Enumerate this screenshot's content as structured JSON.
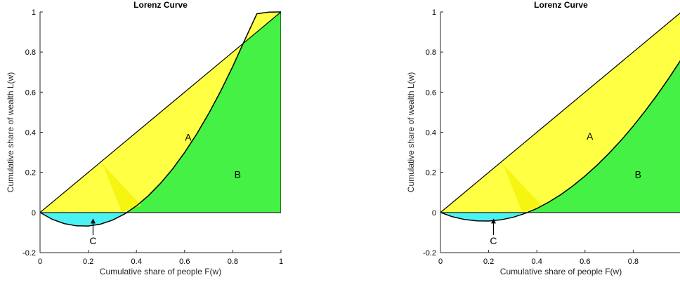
{
  "chart_data": [
    {
      "type": "area",
      "title": "Lorenz Curve",
      "xlabel": "Cumulative share of people F(w)",
      "ylabel": "Cumulative share of wealth L(w)",
      "xlim": [
        0,
        1
      ],
      "ylim": [
        -0.2,
        1
      ],
      "xticks": [
        "0",
        "0.2",
        "0.4",
        "0.6",
        "0.8",
        "1"
      ],
      "yticks": [
        "-0.2",
        "0",
        "0.2",
        "0.4",
        "0.6",
        "0.8",
        "1"
      ],
      "grid": false,
      "colors": {
        "A": "#ffff44",
        "B": "#44f144",
        "C": "#4bf2f2",
        "A_shade": "#f2f200"
      },
      "curve": {
        "x": [
          0,
          0.05,
          0.1,
          0.15,
          0.2,
          0.25,
          0.3,
          0.35,
          0.4,
          0.45,
          0.5,
          0.55,
          0.6,
          0.65,
          0.7,
          0.75,
          0.8,
          0.85,
          0.9,
          0.95,
          1
        ],
        "y": [
          0,
          -0.0338,
          -0.0552,
          -0.0664,
          -0.0675,
          -0.0582,
          -0.0384,
          -0.0081,
          0.0329,
          0.0841,
          0.1456,
          0.2172,
          0.2991,
          0.3912,
          0.4934,
          0.6059,
          0.7286,
          0.8614,
          0.9909,
          0.999,
          1
        ]
      },
      "labels": [
        {
          "text": "A",
          "x": 0.615,
          "y": 0.375
        },
        {
          "text": "B",
          "x": 0.82,
          "y": 0.19
        },
        {
          "text": "C",
          "x": 0.22,
          "y": -0.14,
          "arrow_to_y": -0.03
        }
      ]
    },
    {
      "type": "area",
      "title": "Lorenz Curve",
      "xlabel": "Cumulative share of people F(w)",
      "ylabel": "Cumulative share of wealth L(w)",
      "xlim": [
        0,
        1
      ],
      "ylim": [
        -0.2,
        1
      ],
      "xticks": [
        "0",
        "0.2",
        "0.4",
        "0.6",
        "0.8"
      ],
      "yticks": [
        "-0.2",
        "0",
        "0.2",
        "0.4",
        "0.6",
        "0.8",
        "1"
      ],
      "grid": false,
      "colors": {
        "A": "#ffff44",
        "B": "#44f144",
        "C": "#4bf2f2",
        "A_shade": "#f2f200"
      },
      "curve": {
        "x": [
          0,
          0.05,
          0.1,
          0.15,
          0.2,
          0.25,
          0.3,
          0.35,
          0.4,
          0.45,
          0.5,
          0.55,
          0.6,
          0.65,
          0.7,
          0.75,
          0.8,
          0.85,
          0.9,
          0.95,
          1
        ],
        "y": [
          0,
          -0.0212,
          -0.0347,
          -0.0418,
          -0.0424,
          -0.0365,
          -0.0242,
          -0.0053,
          0.0201,
          0.0523,
          0.0897,
          0.1332,
          0.182,
          0.2361,
          0.2956,
          0.3605,
          0.4307,
          0.5062,
          0.5871,
          0.6733,
          0.765
        ]
      },
      "labels": [
        {
          "text": "A",
          "x": 0.62,
          "y": 0.38
        },
        {
          "text": "B",
          "x": 0.82,
          "y": 0.19
        },
        {
          "text": "C",
          "x": 0.22,
          "y": -0.14,
          "arrow_to_y": -0.03
        }
      ]
    }
  ]
}
